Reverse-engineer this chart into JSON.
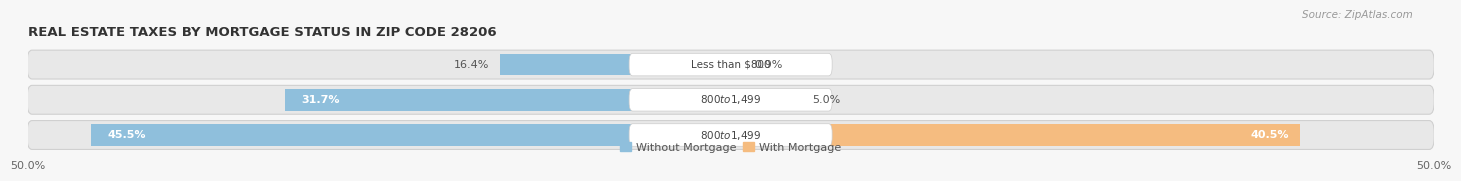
{
  "title": "REAL ESTATE TAXES BY MORTGAGE STATUS IN ZIP CODE 28206",
  "source": "Source: ZipAtlas.com",
  "rows": [
    {
      "label": "Less than $800",
      "without_mortgage": 16.4,
      "with_mortgage": 0.9
    },
    {
      "label": "$800 to $1,499",
      "without_mortgage": 31.7,
      "with_mortgage": 5.0
    },
    {
      "label": "$800 to $1,499",
      "without_mortgage": 45.5,
      "with_mortgage": 40.5
    }
  ],
  "max_value": 50.0,
  "color_without": "#8fbfdc",
  "color_with": "#f5bc80",
  "bar_height": 0.62,
  "bg_color": "#f7f7f7",
  "row_bg_color": "#e8e8e8",
  "title_fontsize": 9.5,
  "source_fontsize": 7.5,
  "value_fontsize": 8,
  "label_fontsize": 7.5,
  "tick_fontsize": 8,
  "legend_fontsize": 8
}
